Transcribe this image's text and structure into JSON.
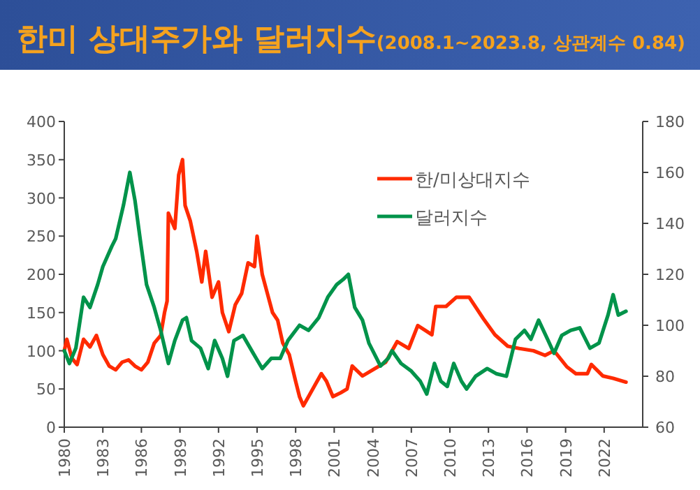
{
  "chart_data": {
    "type": "line",
    "title": "한미 상대주가와 달러지수",
    "subtitle": "(2008.1~2023.8, 상관계수 0.84)",
    "xlim": [
      1980,
      2025
    ],
    "xticks": [
      1980,
      1983,
      1986,
      1989,
      1992,
      1995,
      1998,
      2001,
      2004,
      2007,
      2010,
      2013,
      2016,
      2019,
      2022
    ],
    "ylim": [
      0,
      400
    ],
    "yticks": [
      0,
      50,
      100,
      150,
      200,
      250,
      300,
      350,
      400
    ],
    "y2lim": [
      60,
      180
    ],
    "y2ticks": [
      60,
      80,
      100,
      120,
      140,
      160,
      180
    ],
    "legend": "top right",
    "series": [
      {
        "name": "한/미상대지수",
        "color": "#ff2a00",
        "x": [
          1980.0,
          1980.2,
          1980.6,
          1981.0,
          1981.5,
          1982.0,
          1982.5,
          1983.0,
          1983.5,
          1984.0,
          1984.5,
          1985.0,
          1985.5,
          1986.0,
          1986.5,
          1987.0,
          1987.5,
          1987.8,
          1988.0,
          1988.1,
          1988.6,
          1988.9,
          1989.2,
          1989.4,
          1989.8,
          1990.3,
          1990.7,
          1991.0,
          1991.5,
          1992.0,
          1992.3,
          1992.8,
          1993.3,
          1993.8,
          1994.3,
          1994.8,
          1995.0,
          1995.4,
          1995.8,
          1996.2,
          1996.6,
          1997.0,
          1997.5,
          1998.0,
          1998.3,
          1998.6,
          1999.0,
          1999.5,
          2000.0,
          2000.4,
          2000.9,
          2001.5,
          2002.0,
          2002.4,
          2003.2,
          2004.1,
          2005.0,
          2005.9,
          2006.8,
          2007.5,
          2008.6,
          2008.9,
          2009.7,
          2010.5,
          2011.5,
          2012.6,
          2013.5,
          2014.5,
          2015.4,
          2016.5,
          2017.4,
          2018.1,
          2019.1,
          2019.8,
          2020.7,
          2021.0,
          2021.9,
          2022.7,
          2023.7
        ],
        "values": [
          100,
          115,
          90,
          82,
          115,
          105,
          120,
          95,
          80,
          75,
          85,
          88,
          80,
          75,
          85,
          110,
          120,
          150,
          165,
          280,
          260,
          330,
          350,
          290,
          270,
          230,
          190,
          230,
          170,
          190,
          150,
          125,
          160,
          175,
          215,
          210,
          250,
          200,
          175,
          150,
          140,
          110,
          95,
          60,
          40,
          28,
          40,
          55,
          70,
          60,
          40,
          45,
          50,
          80,
          67,
          76,
          85,
          112,
          103,
          133,
          121,
          158,
          158,
          170,
          170,
          142,
          121,
          106,
          103,
          100,
          94,
          100,
          79,
          70,
          70,
          82,
          67,
          64,
          59
        ]
      },
      {
        "name": "달러지수",
        "color": "#00934a",
        "axis": "y2",
        "x": [
          1980.0,
          1980.4,
          1980.9,
          1981.5,
          1982.0,
          1982.6,
          1983.0,
          1983.7,
          1984.0,
          1984.6,
          1985.1,
          1985.5,
          1985.9,
          1986.4,
          1987.0,
          1987.5,
          1988.1,
          1988.6,
          1989.2,
          1989.5,
          1989.9,
          1990.6,
          1991.2,
          1991.7,
          1992.3,
          1992.7,
          1993.2,
          1993.9,
          1994.7,
          1995.4,
          1996.1,
          1996.8,
          1997.4,
          1998.3,
          1999.0,
          1999.8,
          2000.5,
          2001.2,
          2001.7,
          2002.1,
          2002.6,
          2003.2,
          2003.7,
          2004.1,
          2004.6,
          2005.2,
          2005.5,
          2006.2,
          2007.0,
          2007.7,
          2008.2,
          2008.8,
          2009.3,
          2009.8,
          2010.3,
          2010.9,
          2011.3,
          2012.0,
          2012.9,
          2013.6,
          2014.4,
          2015.1,
          2015.8,
          2016.3,
          2016.9,
          2017.6,
          2018.1,
          2018.7,
          2019.4,
          2020.1,
          2020.9,
          2021.6,
          2022.3,
          2022.7,
          2023.1,
          2023.7
        ],
        "values": [
          90,
          85,
          91,
          111,
          107,
          116,
          123,
          131,
          134,
          147,
          160,
          149,
          134,
          116,
          107,
          98,
          85,
          94,
          102,
          103,
          94,
          91,
          83,
          94,
          87,
          80,
          94,
          96,
          89,
          83,
          87,
          87,
          94,
          100,
          98,
          103,
          111,
          116,
          118,
          120,
          107,
          102,
          93,
          89,
          84,
          87,
          90,
          85,
          82,
          78,
          73,
          85,
          78,
          76,
          85,
          78,
          75,
          80,
          83,
          81,
          80,
          94.5,
          98,
          94.5,
          102,
          94.5,
          89,
          96,
          98,
          99,
          91,
          93,
          104,
          112,
          104,
          105.5
        ]
      }
    ]
  }
}
